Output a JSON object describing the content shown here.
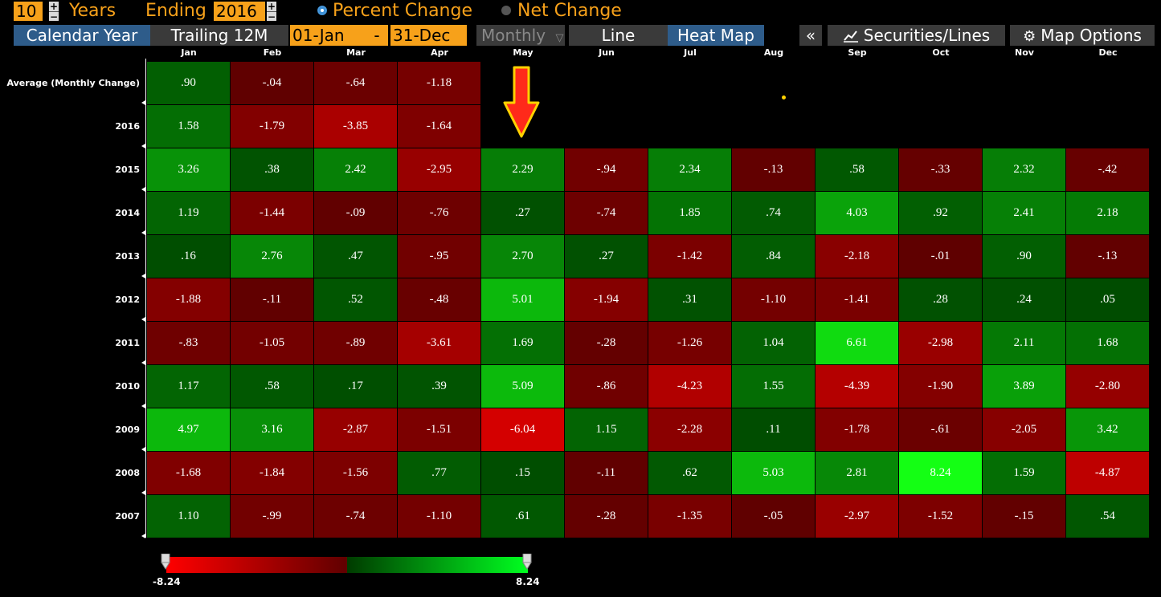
{
  "toolbar": {
    "years_value": "10",
    "years_label": "Years",
    "ending_label": "Ending",
    "ending_value": "2016",
    "percent_change_label": "Percent Change",
    "net_change_label": "Net Change",
    "calendar_year_label": "Calendar Year",
    "trailing_label": "Trailing 12M",
    "start_date": "01-Jan",
    "date_separator": "-",
    "end_date": "31-Dec",
    "frequency_label": "Monthly",
    "line_label": "Line",
    "heatmap_label": "Heat Map",
    "collapse_label": "«",
    "securities_label": "Securities/Lines",
    "map_options_label": "Map Options"
  },
  "heatmap": {
    "months": [
      "Jan",
      "Feb",
      "Mar",
      "Apr",
      "May",
      "Jun",
      "Jul",
      "Aug",
      "Sep",
      "Oct",
      "Nov",
      "Dec"
    ],
    "rows": [
      {
        "label": "Average (Monthly Change)",
        "values": [
          ".90",
          "-.04",
          "-.64",
          "-1.18"
        ]
      },
      {
        "label": "2016",
        "values": [
          "1.58",
          "-1.79",
          "-3.85",
          "-1.64"
        ]
      },
      {
        "label": "2015",
        "values": [
          "3.26",
          ".38",
          "2.42",
          "-2.95",
          "2.29",
          "-.94",
          "2.34",
          "-.13",
          ".58",
          "-.33",
          "2.32",
          "-.42"
        ]
      },
      {
        "label": "2014",
        "values": [
          "1.19",
          "-1.44",
          "-.09",
          "-.76",
          ".27",
          "-.74",
          "1.85",
          ".74",
          "4.03",
          ".92",
          "2.41",
          "2.18"
        ]
      },
      {
        "label": "2013",
        "values": [
          ".16",
          "2.76",
          ".47",
          "-.95",
          "2.70",
          ".27",
          "-1.42",
          ".84",
          "-2.18",
          "-.01",
          ".90",
          "-.13"
        ]
      },
      {
        "label": "2012",
        "values": [
          "-1.88",
          "-.11",
          ".52",
          "-.48",
          "5.01",
          "-1.94",
          ".31",
          "-1.10",
          "-1.41",
          ".28",
          ".24",
          ".05"
        ]
      },
      {
        "label": "2011",
        "values": [
          "-.83",
          "-1.05",
          "-.89",
          "-3.61",
          "1.69",
          "-.28",
          "-1.26",
          "1.04",
          "6.61",
          "-2.98",
          "2.11",
          "1.68"
        ]
      },
      {
        "label": "2010",
        "values": [
          "1.17",
          ".58",
          ".17",
          ".39",
          "5.09",
          "-.86",
          "-4.23",
          "1.55",
          "-4.39",
          "-1.90",
          "3.89",
          "-2.80"
        ]
      },
      {
        "label": "2009",
        "values": [
          "4.97",
          "3.16",
          "-2.87",
          "-1.51",
          "-6.04",
          "1.15",
          "-2.28",
          ".11",
          "-1.78",
          "-.61",
          "-2.05",
          "3.42"
        ]
      },
      {
        "label": "2008",
        "values": [
          "-1.68",
          "-1.84",
          "-1.56",
          ".77",
          ".15",
          "-.11",
          ".62",
          "5.03",
          "2.81",
          "8.24",
          "1.59",
          "-4.87"
        ]
      },
      {
        "label": "2007",
        "values": [
          "1.10",
          "-.99",
          "-.74",
          "-1.10",
          ".61",
          "-.28",
          "-1.35",
          "-.05",
          "-2.97",
          "-1.52",
          "-.15",
          ".54"
        ]
      }
    ]
  },
  "scale": {
    "min_label": "-8.24",
    "max_label": "8.24"
  },
  "colors": {
    "accent_orange": "#f7a11a",
    "selected_blue": "#2e5c8a",
    "arrow_red": "#ff2a1a",
    "arrow_outline": "#ffd200"
  }
}
